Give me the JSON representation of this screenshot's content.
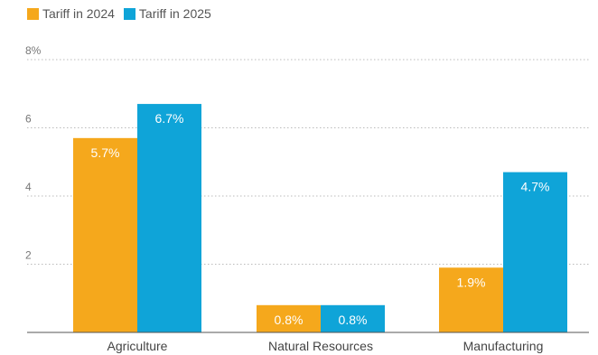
{
  "colors": {
    "series_2024": "#F5A81C",
    "series_2025": "#0FA4D8",
    "gridline": "#bbbbbb",
    "axis": "#555555"
  },
  "chart_data": {
    "type": "bar",
    "categories": [
      "Agriculture",
      "Natural Resources",
      "Manufacturing"
    ],
    "series": [
      {
        "name": "Tariff in 2024",
        "values": [
          5.7,
          0.8,
          1.9
        ],
        "labels": [
          "5.7%",
          "0.8%",
          "1.9%"
        ]
      },
      {
        "name": "Tariff in 2025",
        "values": [
          6.7,
          0.8,
          4.7
        ],
        "labels": [
          "6.7%",
          "0.8%",
          "4.7%"
        ]
      }
    ],
    "yticks": [
      {
        "value": 2,
        "label": "2"
      },
      {
        "value": 4,
        "label": "4"
      },
      {
        "value": 6,
        "label": "6"
      },
      {
        "value": 8,
        "label": "8%"
      }
    ],
    "ylim": [
      0,
      8
    ],
    "grid": true,
    "legend_position": "top-left",
    "title": "",
    "xlabel": "",
    "ylabel": ""
  }
}
